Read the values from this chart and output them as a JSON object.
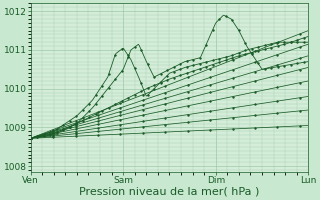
{
  "xlabel": "Pression niveau de la mer( hPa )",
  "bg_color": "#c8e8d0",
  "plot_bg_color": "#d4edd8",
  "grid_color": "#a0c8a8",
  "line_color": "#1a5c28",
  "xlim": [
    0,
    72
  ],
  "ylim": [
    1007.85,
    1012.2
  ],
  "yticks": [
    1008,
    1009,
    1010,
    1011,
    1012
  ],
  "xtick_positions": [
    0,
    24,
    48,
    72
  ],
  "xtick_labels": [
    "Ven",
    "Sam",
    "Dim",
    "Lun"
  ],
  "xlabel_fontsize": 8,
  "ytick_fontsize": 6.5,
  "xtick_fontsize": 6.5,
  "smooth_lines": [
    {
      "t": [
        0,
        72
      ],
      "y": [
        1008.72,
        1009.05
      ]
    },
    {
      "t": [
        0,
        72
      ],
      "y": [
        1008.72,
        1009.45
      ]
    },
    {
      "t": [
        0,
        72
      ],
      "y": [
        1008.72,
        1009.8
      ]
    },
    {
      "t": [
        0,
        72
      ],
      "y": [
        1008.72,
        1010.2
      ]
    },
    {
      "t": [
        0,
        72
      ],
      "y": [
        1008.72,
        1010.55
      ]
    },
    {
      "t": [
        0,
        72
      ],
      "y": [
        1008.72,
        1010.85
      ]
    },
    {
      "t": [
        0,
        72
      ],
      "y": [
        1008.72,
        1011.15
      ]
    },
    {
      "t": [
        0,
        72
      ],
      "y": [
        1008.72,
        1011.5
      ]
    }
  ],
  "jagged_lines": [
    {
      "t": [
        0,
        6,
        12,
        16,
        20,
        22,
        24,
        26,
        28,
        30,
        32,
        34,
        36,
        40,
        44,
        48,
        52,
        56,
        60,
        64,
        68,
        72
      ],
      "y": [
        1008.72,
        1008.9,
        1009.3,
        1009.7,
        1010.3,
        1010.9,
        1011.05,
        1010.75,
        1010.3,
        1009.8,
        1010.0,
        1010.2,
        1010.4,
        1010.55,
        1010.65,
        1010.75,
        1010.85,
        1011.0,
        1011.1,
        1011.2,
        1011.2,
        1011.2
      ]
    },
    {
      "t": [
        0,
        4,
        8,
        12,
        16,
        20,
        24,
        26,
        28,
        30,
        32,
        36,
        40,
        44,
        48,
        50,
        52,
        54,
        56,
        58,
        60,
        63,
        66,
        69,
        72
      ],
      "y": [
        1008.72,
        1008.78,
        1008.9,
        1009.1,
        1009.5,
        1010.0,
        1010.5,
        1011.0,
        1011.15,
        1010.7,
        1010.3,
        1010.5,
        1010.7,
        1010.8,
        1011.7,
        1011.9,
        1011.8,
        1011.5,
        1011.1,
        1010.8,
        1010.5,
        1010.55,
        1010.6,
        1010.65,
        1010.7
      ]
    },
    {
      "t": [
        0,
        6,
        12,
        18,
        24,
        30,
        36,
        42,
        48,
        54,
        60,
        66,
        72
      ],
      "y": [
        1008.72,
        1008.85,
        1009.1,
        1009.4,
        1009.7,
        1010.0,
        1010.25,
        1010.45,
        1010.65,
        1010.85,
        1011.0,
        1011.15,
        1011.35
      ]
    }
  ]
}
